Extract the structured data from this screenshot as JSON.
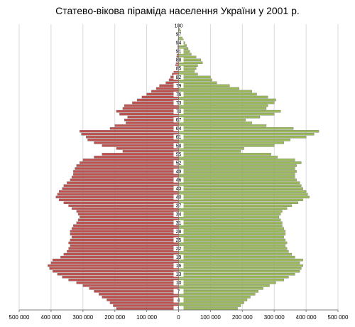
{
  "chart_data": {
    "type": "bar",
    "title": "Статево-вікова піраміда населення України у 2001 р.",
    "orientation": "horizontal-pyramid",
    "xlim": [
      -500000,
      500000
    ],
    "x_ticks": [
      -500000,
      -400000,
      -300000,
      -200000,
      -100000,
      0,
      100000,
      200000,
      300000,
      400000,
      500000
    ],
    "x_tick_labels": [
      "500 000",
      "400 000",
      "300 000",
      "200 000",
      "100 000",
      "0",
      "100 000",
      "200 000",
      "300 000",
      "400 000",
      "500 000"
    ],
    "age_labels_shown": [
      1,
      4,
      7,
      10,
      13,
      16,
      19,
      22,
      25,
      28,
      31,
      34,
      37,
      40,
      43,
      46,
      49,
      52,
      55,
      58,
      61,
      64,
      67,
      70,
      73,
      76,
      79,
      82,
      85,
      88,
      91,
      94,
      97,
      100
    ],
    "ages": [
      1,
      2,
      3,
      4,
      5,
      6,
      7,
      8,
      9,
      10,
      11,
      12,
      13,
      14,
      15,
      16,
      17,
      18,
      19,
      20,
      21,
      22,
      23,
      24,
      25,
      26,
      27,
      28,
      29,
      30,
      31,
      32,
      33,
      34,
      35,
      36,
      37,
      38,
      39,
      40,
      41,
      42,
      43,
      44,
      45,
      46,
      47,
      48,
      49,
      50,
      51,
      52,
      53,
      54,
      55,
      56,
      57,
      58,
      59,
      60,
      61,
      62,
      63,
      64,
      65,
      66,
      67,
      68,
      69,
      70,
      71,
      72,
      73,
      74,
      75,
      76,
      77,
      78,
      79,
      80,
      81,
      82,
      83,
      84,
      85,
      86,
      87,
      88,
      89,
      90,
      91,
      92,
      93,
      94,
      95,
      96,
      97,
      98,
      99,
      100
    ],
    "series": [
      {
        "color": "#C0504D",
        "side": "left",
        "values": [
          195000,
          205000,
          215000,
          225000,
          240000,
          250000,
          265000,
          280000,
          300000,
          320000,
          345000,
          365000,
          380000,
          395000,
          405000,
          410000,
          400000,
          395000,
          370000,
          360000,
          350000,
          345000,
          340000,
          345000,
          340000,
          335000,
          340000,
          340000,
          335000,
          330000,
          320000,
          315000,
          310000,
          315000,
          320000,
          335000,
          345000,
          360000,
          375000,
          385000,
          380000,
          375000,
          365000,
          360000,
          350000,
          340000,
          335000,
          330000,
          330000,
          325000,
          320000,
          310000,
          300000,
          265000,
          240000,
          175000,
          195000,
          240000,
          265000,
          285000,
          290000,
          305000,
          310000,
          215000,
          200000,
          165000,
          170000,
          160000,
          185000,
          195000,
          175000,
          170000,
          145000,
          130000,
          115000,
          100000,
          85000,
          70000,
          60000,
          40000,
          30000,
          25000,
          20000,
          15000,
          12000,
          10000,
          8000,
          7000,
          6000,
          5000,
          4000,
          3000,
          2500,
          2000,
          1500,
          1000,
          800,
          600,
          400,
          300
        ]
      },
      {
        "color": "#9BBB59",
        "side": "right",
        "values": [
          185000,
          195000,
          205000,
          215000,
          225000,
          240000,
          250000,
          265000,
          285000,
          305000,
          330000,
          345000,
          365000,
          380000,
          385000,
          390000,
          380000,
          390000,
          365000,
          355000,
          345000,
          340000,
          335000,
          340000,
          335000,
          330000,
          335000,
          335000,
          330000,
          325000,
          325000,
          320000,
          315000,
          320000,
          325000,
          340000,
          355000,
          375000,
          390000,
          410000,
          405000,
          400000,
          390000,
          385000,
          380000,
          370000,
          365000,
          365000,
          370000,
          365000,
          370000,
          385000,
          365000,
          310000,
          290000,
          195000,
          205000,
          300000,
          330000,
          350000,
          400000,
          425000,
          440000,
          360000,
          275000,
          230000,
          210000,
          255000,
          300000,
          320000,
          275000,
          280000,
          300000,
          305000,
          280000,
          245000,
          230000,
          190000,
          160000,
          120000,
          105000,
          100000,
          60000,
          50000,
          55000,
          60000,
          75000,
          70000,
          55000,
          40000,
          35000,
          30000,
          25000,
          20000,
          15000,
          12000,
          10000,
          7000,
          5000,
          3000
        ]
      }
    ]
  }
}
